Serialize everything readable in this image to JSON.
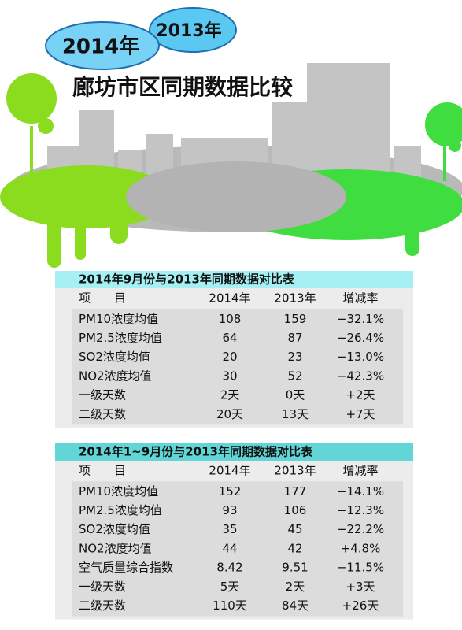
{
  "badges": {
    "year_front": "2014年",
    "year_back": "2013年"
  },
  "title": "廊坊市区同期数据比较",
  "tables": [
    {
      "caption": "2014年9月份与2013年同期数据对比表",
      "header": [
        "项　　目",
        "2014年",
        "2013年",
        "增减率"
      ],
      "rows": [
        [
          "PM10浓度均值",
          "108",
          "159",
          "−32.1%"
        ],
        [
          "PM2.5浓度均值",
          "64",
          "87",
          "−26.4%"
        ],
        [
          "SO2浓度均值",
          "20",
          "23",
          "−13.0%"
        ],
        [
          "NO2浓度均值",
          "30",
          "52",
          "−42.3%"
        ],
        [
          "一级天数",
          "2天",
          "0天",
          "+2天"
        ],
        [
          "二级天数",
          "20天",
          "13天",
          "+7天"
        ]
      ]
    },
    {
      "caption": "2014年1~9月份与2013年同期数据对比表",
      "header": [
        "项　　目",
        "2014年",
        "2013年",
        "增减率"
      ],
      "rows": [
        [
          "PM10浓度均值",
          "152",
          "177",
          "−14.1%"
        ],
        [
          "PM2.5浓度均值",
          "93",
          "106",
          "−12.3%"
        ],
        [
          "SO2浓度均值",
          "35",
          "45",
          "−22.2%"
        ],
        [
          "NO2浓度均值",
          "44",
          "42",
          "+4.8%"
        ],
        [
          "空气质量综合指数",
          "8.42",
          "9.51",
          "−11.5%"
        ],
        [
          "一级天数",
          "5天",
          "2天",
          "+3天"
        ],
        [
          "二级天数",
          "110天",
          "84天",
          "+26天"
        ]
      ]
    }
  ]
}
